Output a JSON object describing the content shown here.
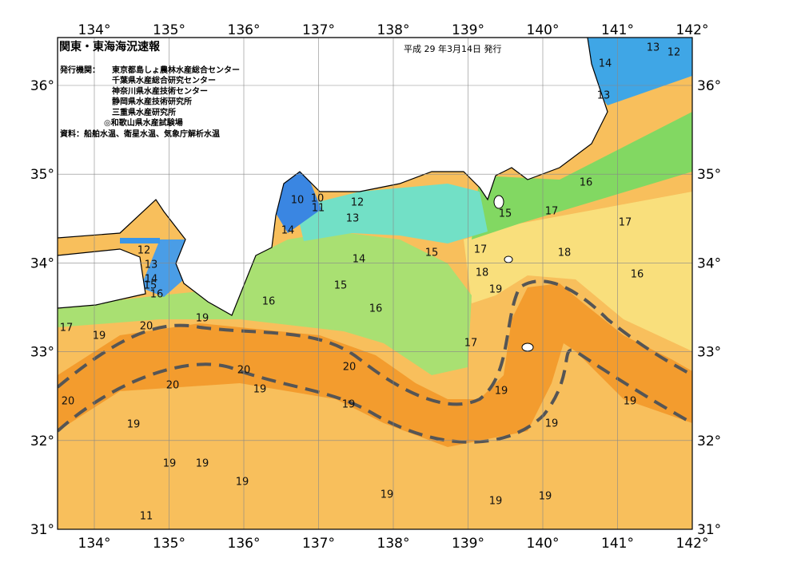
{
  "header": {
    "title": "関東・東海海況速報",
    "date": "平成 29 年3月14日 発行",
    "issuer_label": "発行機関：",
    "issuers": [
      "東京都島しょ農林水産総合センター",
      "千葉県水産総合研究センター",
      "神奈川県水産技術センター",
      "静岡県水産技術研究所",
      "三重県水産研究所",
      "◎和歌山県水産試験場"
    ],
    "source": "資料：船舶水温、衛星水温、気象庁解析水温"
  },
  "axes": {
    "longitudes": [
      "134°",
      "135°",
      "136°",
      "137°",
      "138°",
      "139°",
      "140°",
      "141°",
      "142°"
    ],
    "latitudes": [
      "36°",
      "35°",
      "34°",
      "33°",
      "32°",
      "31°"
    ]
  },
  "contour_labels": [
    "13",
    "12",
    "14",
    "13",
    "16",
    "17",
    "17",
    "15",
    "17",
    "18",
    "16",
    "18",
    "19",
    "10",
    "10",
    "11",
    "12",
    "13",
    "14",
    "14",
    "15",
    "15",
    "16",
    "16",
    "17",
    "19",
    "19",
    "19",
    "19",
    "19",
    "19",
    "20",
    "20",
    "20",
    "20",
    "20",
    "19",
    "19",
    "17",
    "19",
    "19",
    "19",
    "19",
    "19",
    "19",
    "11",
    "12",
    "13",
    "14",
    "15",
    "16"
  ]
}
